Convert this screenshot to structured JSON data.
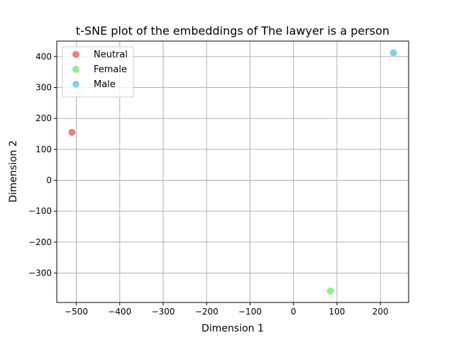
{
  "chart_data": {
    "type": "scatter",
    "title": "t-SNE plot of the embeddings of The lawyer is a person",
    "xlabel": "Dimension 1",
    "ylabel": "Dimension 2",
    "xlim": [
      -545,
      265
    ],
    "ylim": [
      -395,
      450
    ],
    "xticks": [
      -500,
      -400,
      -300,
      -200,
      -100,
      0,
      100,
      200
    ],
    "yticks": [
      -300,
      -200,
      -100,
      0,
      100,
      200,
      300,
      400
    ],
    "grid": true,
    "legend_position": "top-left",
    "series": [
      {
        "name": "Neutral",
        "color": "#f08080",
        "x": [
          -510
        ],
        "y": [
          155
        ]
      },
      {
        "name": "Female",
        "color": "#90ee90",
        "x": [
          85
        ],
        "y": [
          -358
        ]
      },
      {
        "name": "Male",
        "color": "#87ceeb",
        "x": [
          230
        ],
        "y": [
          412
        ]
      }
    ]
  }
}
